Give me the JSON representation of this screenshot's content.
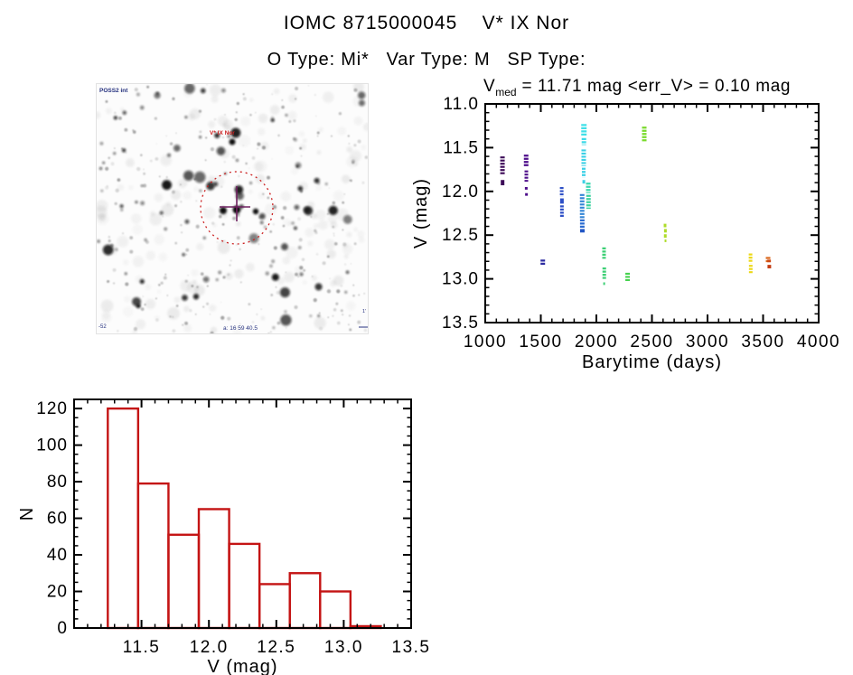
{
  "page": {
    "title": "IOMC 8715000045    V* IX Nor",
    "subtitle": "O Type: Mi*   Var Type: M   SP Type:"
  },
  "finding_chart": {
    "survey_label": "POSS2 int",
    "star_label": "V* IX Nor",
    "coord_label": "a: 16 59 40.5",
    "corner_label": "-52",
    "scale_label": "1'",
    "circle_color": "#cc2222",
    "cross_color": "#6e2160",
    "annotation_text_color": "#26327f"
  },
  "chart_data": [
    {
      "type": "scatter",
      "title_v": "V",
      "title_sub": "med",
      "title_rest": " = 11.71 mag <err_V> = 0.10 mag",
      "xlabel": "Barytime (days)",
      "ylabel": "V (mag)",
      "xlim": [
        1000,
        4000
      ],
      "ylim_top_to_bottom": [
        11.0,
        13.5
      ],
      "xticks": [
        1000,
        1500,
        2000,
        2500,
        3000,
        3500,
        4000
      ],
      "xtick_labels": [
        "1000",
        "1500",
        "2000",
        "2500",
        "3000",
        "3500",
        "4000"
      ],
      "yticks": [
        11.0,
        11.5,
        12.0,
        12.5,
        13.0,
        13.5
      ],
      "ytick_labels": [
        "11.0",
        "11.5",
        "12.0",
        "12.5",
        "13.0",
        "13.5"
      ],
      "x_minor_step": 100,
      "y_minor_step": 0.1,
      "grid": false,
      "legend": false,
      "note": "epoch-colored vertical streaks of V-band photometry per visit",
      "segments": [
        {
          "day": 1155,
          "v": [
            11.6,
            11.81
          ],
          "color": "#3d0a58",
          "w": 5
        },
        {
          "day": 1156,
          "v": [
            11.87,
            11.93
          ],
          "color": "#3d0a58",
          "w": 4
        },
        {
          "day": 1368,
          "v": [
            11.58,
            11.72
          ],
          "color": "#4d0d8a",
          "w": 5
        },
        {
          "day": 1370,
          "v": [
            11.76,
            11.89
          ],
          "color": "#4d0d8a",
          "w": 4
        },
        {
          "day": 1369,
          "v": [
            11.95,
            11.98
          ],
          "color": "#4d0d8a",
          "w": 3
        },
        {
          "day": 1371,
          "v": [
            12.02,
            12.05
          ],
          "color": "#4d0d8a",
          "w": 3
        },
        {
          "day": 1518,
          "v": [
            12.78,
            12.85
          ],
          "color": "#2b2aa0",
          "w": 5
        },
        {
          "day": 1688,
          "v": [
            11.95,
            12.06
          ],
          "color": "#2d4fc6",
          "w": 4
        },
        {
          "day": 1690,
          "v": [
            12.08,
            12.14
          ],
          "color": "#2d4fc6",
          "w": 4
        },
        {
          "day": 1690,
          "v": [
            12.16,
            12.3
          ],
          "color": "#2d4fc6",
          "w": 4
        },
        {
          "day": 1872,
          "v": [
            12.03,
            12.31
          ],
          "color": "#3184d6",
          "w": 5
        },
        {
          "day": 1873,
          "v": [
            12.32,
            12.42
          ],
          "color": "#2a6bd0",
          "w": 5
        },
        {
          "day": 1874,
          "v": [
            12.43,
            12.47
          ],
          "color": "#2256c4",
          "w": 5
        },
        {
          "day": 1888,
          "v": [
            11.23,
            11.37
          ],
          "color": "#41e0e8",
          "w": 6
        },
        {
          "day": 1888,
          "v": [
            11.39,
            11.47
          ],
          "color": "#3edae8",
          "w": 5
        },
        {
          "day": 1886,
          "v": [
            11.52,
            11.71
          ],
          "color": "#3cd0e6",
          "w": 5
        },
        {
          "day": 1886,
          "v": [
            11.73,
            11.84
          ],
          "color": "#3cd0e6",
          "w": 4
        },
        {
          "day": 1887,
          "v": [
            11.87,
            11.91
          ],
          "color": "#3cd0e6",
          "w": 3
        },
        {
          "day": 1927,
          "v": [
            11.9,
            12.02
          ],
          "color": "#3dd7b0",
          "w": 5
        },
        {
          "day": 1929,
          "v": [
            12.04,
            12.2
          ],
          "color": "#3ed3a0",
          "w": 5
        },
        {
          "day": 2069,
          "v": [
            12.64,
            12.77
          ],
          "color": "#3ccf74",
          "w": 4
        },
        {
          "day": 2071,
          "v": [
            12.87,
            13.0
          ],
          "color": "#3ccf74",
          "w": 4
        },
        {
          "day": 2070,
          "v": [
            13.04,
            13.07
          ],
          "color": "#3ccf74",
          "w": 2
        },
        {
          "day": 2281,
          "v": [
            12.93,
            13.03
          ],
          "color": "#45d24e",
          "w": 5
        },
        {
          "day": 2431,
          "v": [
            11.26,
            11.43
          ],
          "color": "#79da2b",
          "w": 5
        },
        {
          "day": 2618,
          "v": [
            12.37,
            12.41
          ],
          "color": "#aedc2a",
          "w": 3
        },
        {
          "day": 2621,
          "v": [
            12.43,
            12.47
          ],
          "color": "#aedc2a",
          "w": 3
        },
        {
          "day": 2620,
          "v": [
            12.49,
            12.53
          ],
          "color": "#aedc2a",
          "w": 3
        },
        {
          "day": 2622,
          "v": [
            12.55,
            12.58
          ],
          "color": "#aedc2a",
          "w": 2
        },
        {
          "day": 3387,
          "v": [
            12.71,
            12.82
          ],
          "color": "#ecd816",
          "w": 4
        },
        {
          "day": 3389,
          "v": [
            12.84,
            12.94
          ],
          "color": "#ecd816",
          "w": 4
        },
        {
          "day": 3545,
          "v": [
            12.75,
            12.82
          ],
          "color": "#da671a",
          "w": 5
        },
        {
          "day": 3554,
          "v": [
            12.78,
            12.81
          ],
          "color": "#cd4a16",
          "w": 4
        },
        {
          "day": 3556,
          "v": [
            12.84,
            12.88
          ],
          "color": "#c43c12",
          "w": 4
        }
      ]
    },
    {
      "type": "bar",
      "title": "",
      "xlabel": "V (mag)",
      "ylabel": "N",
      "xlim": [
        11.0,
        13.5
      ],
      "ylim": [
        0,
        125
      ],
      "xticks": [
        11.5,
        12.0,
        12.5,
        13.0,
        13.5
      ],
      "xtick_labels": [
        "11.5",
        "12.0",
        "12.5",
        "13.0",
        "13.5"
      ],
      "yticks": [
        0,
        20,
        40,
        60,
        80,
        100,
        120
      ],
      "ytick_labels": [
        "0",
        "20",
        "40",
        "60",
        "80",
        "100",
        "120"
      ],
      "x_minor_step": 0.1,
      "y_minor_step": 5,
      "grid": false,
      "legend": false,
      "bar_color": "#c41414",
      "bin_edges": [
        11.25,
        11.475,
        11.7,
        11.925,
        12.15,
        12.375,
        12.6,
        12.825,
        13.05,
        13.275
      ],
      "counts": [
        120,
        79,
        51,
        65,
        46,
        24,
        30,
        20,
        1
      ]
    }
  ]
}
